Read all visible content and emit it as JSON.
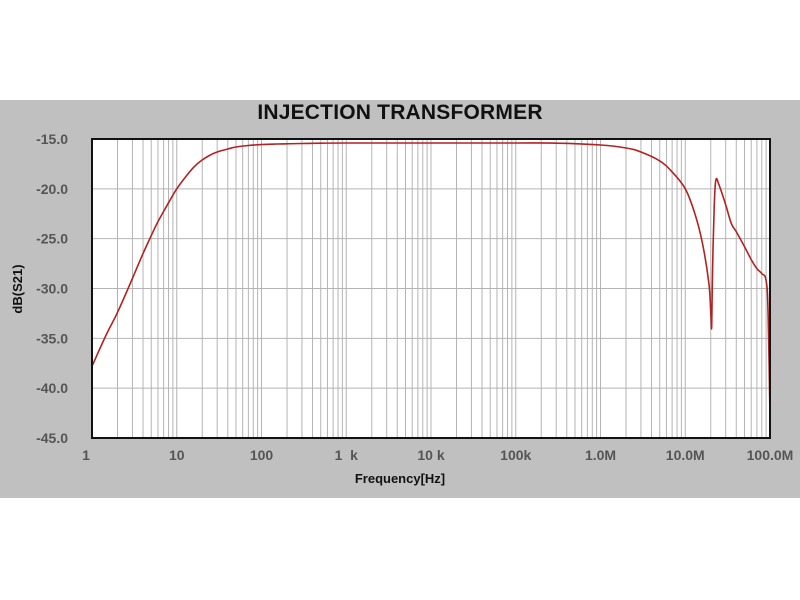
{
  "chart_data": {
    "type": "line",
    "title": "INJECTION TRANSFORMER",
    "xlabel": "Frequency[Hz]",
    "ylabel": "dB(S21)",
    "xscale": "log",
    "xlim": [
      1,
      100000000
    ],
    "ylim": [
      -45,
      -15
    ],
    "grid": true,
    "legend": "none",
    "x_tick_values": [
      1,
      10,
      100,
      1000,
      10000,
      100000,
      1000000,
      10000000,
      100000000
    ],
    "x_tick_labels": [
      "1",
      "10",
      "100",
      "1  k",
      "10 k",
      "100k",
      "1.0M",
      "10.0M",
      "100.0M"
    ],
    "y_tick_values": [
      -15,
      -20,
      -25,
      -30,
      -35,
      -40,
      -45
    ],
    "y_tick_labels": [
      "-15.0",
      "-20.0",
      "-25.0",
      "-30.0",
      "-35.0",
      "-40.0",
      "-45.0"
    ],
    "series": [
      {
        "name": "dB(S21)",
        "color": "#b22222",
        "x": [
          1,
          1.5,
          2,
          3,
          4,
          5,
          6,
          8,
          10,
          13,
          16,
          20,
          25,
          30,
          40,
          50,
          70,
          100,
          150,
          200,
          300,
          500,
          1000,
          10000,
          100000,
          300000,
          1000000,
          2000000,
          3000000,
          5000000,
          7000000,
          10000000,
          13000000,
          16000000,
          19000000,
          20000000,
          20500000,
          21000000,
          22000000,
          23000000,
          25000000,
          30000000,
          35000000,
          40000000,
          50000000,
          60000000,
          70000000,
          80000000,
          90000000,
          95000000,
          100000000
        ],
        "y": [
          -37.8,
          -34.5,
          -32.4,
          -29.0,
          -26.5,
          -24.7,
          -23.3,
          -21.4,
          -20.0,
          -18.7,
          -17.8,
          -17.1,
          -16.6,
          -16.3,
          -16.0,
          -15.8,
          -15.65,
          -15.55,
          -15.5,
          -15.48,
          -15.45,
          -15.42,
          -15.4,
          -15.4,
          -15.4,
          -15.42,
          -15.6,
          -15.9,
          -16.3,
          -17.2,
          -18.3,
          -20.0,
          -22.5,
          -25.5,
          -29.5,
          -32.5,
          -33.8,
          -28.0,
          -21.5,
          -19.1,
          -19.6,
          -21.6,
          -23.5,
          -24.3,
          -25.8,
          -27.1,
          -28.0,
          -28.5,
          -29.2,
          -32.5,
          -43.0
        ]
      }
    ]
  }
}
